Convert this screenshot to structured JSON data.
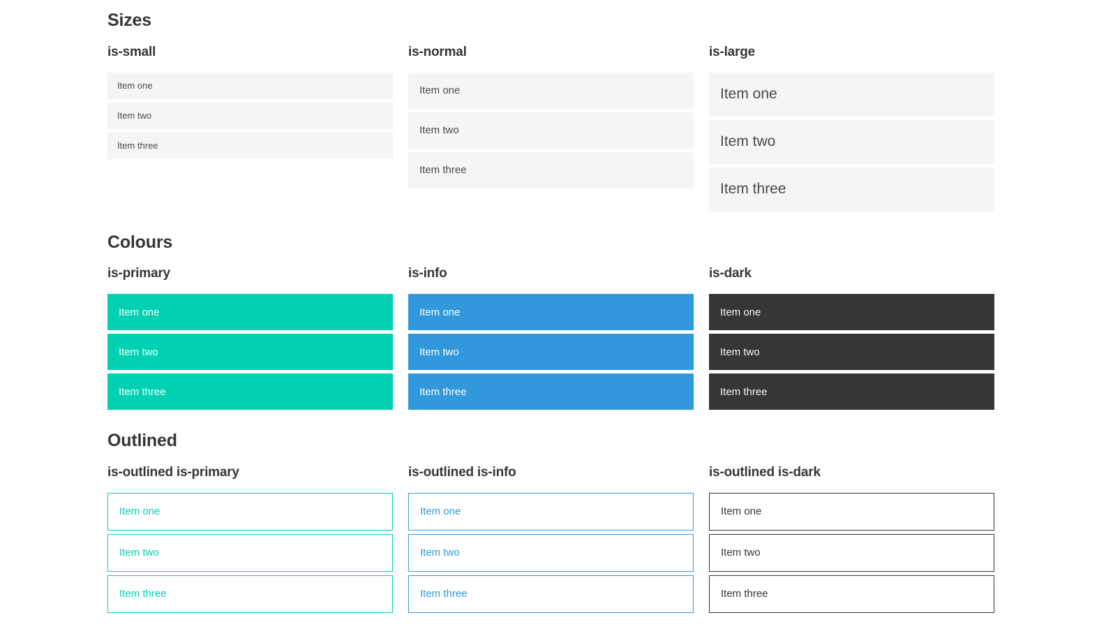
{
  "sections": [
    {
      "title": "Sizes",
      "groups": [
        {
          "label": "is-small",
          "variant": "small",
          "items": [
            "Item one",
            "Item two",
            "Item three"
          ]
        },
        {
          "label": "is-normal",
          "variant": "normal",
          "items": [
            "Item one",
            "Item two",
            "Item three"
          ]
        },
        {
          "label": "is-large",
          "variant": "large",
          "items": [
            "Item one",
            "Item two",
            "Item three"
          ]
        }
      ]
    },
    {
      "title": "Colours",
      "groups": [
        {
          "label": "is-primary",
          "variant": "primary",
          "items": [
            "Item one",
            "Item two",
            "Item three"
          ]
        },
        {
          "label": "is-info",
          "variant": "info",
          "items": [
            "Item one",
            "Item two",
            "Item three"
          ]
        },
        {
          "label": "is-dark",
          "variant": "dark",
          "items": [
            "Item one",
            "Item two",
            "Item three"
          ]
        }
      ]
    },
    {
      "title": "Outlined",
      "groups": [
        {
          "label": "is-outlined is-primary",
          "variant": "outlined-primary",
          "items": [
            "Item one",
            "Item two",
            "Item three"
          ]
        },
        {
          "label": "is-outlined is-info",
          "variant": "outlined-info",
          "items": [
            "Item one",
            "Item two",
            "Item three"
          ]
        },
        {
          "label": "is-outlined is-dark",
          "variant": "outlined-dark",
          "items": [
            "Item one",
            "Item two",
            "Item three"
          ]
        }
      ]
    }
  ],
  "colors": {
    "primary": "#00d1b2",
    "info": "#3298dc",
    "dark": "#363636",
    "item_bg": "#f5f5f5",
    "item_text": "#4a4a4a",
    "heading": "#363636",
    "on_color_text": "#ffffff"
  }
}
